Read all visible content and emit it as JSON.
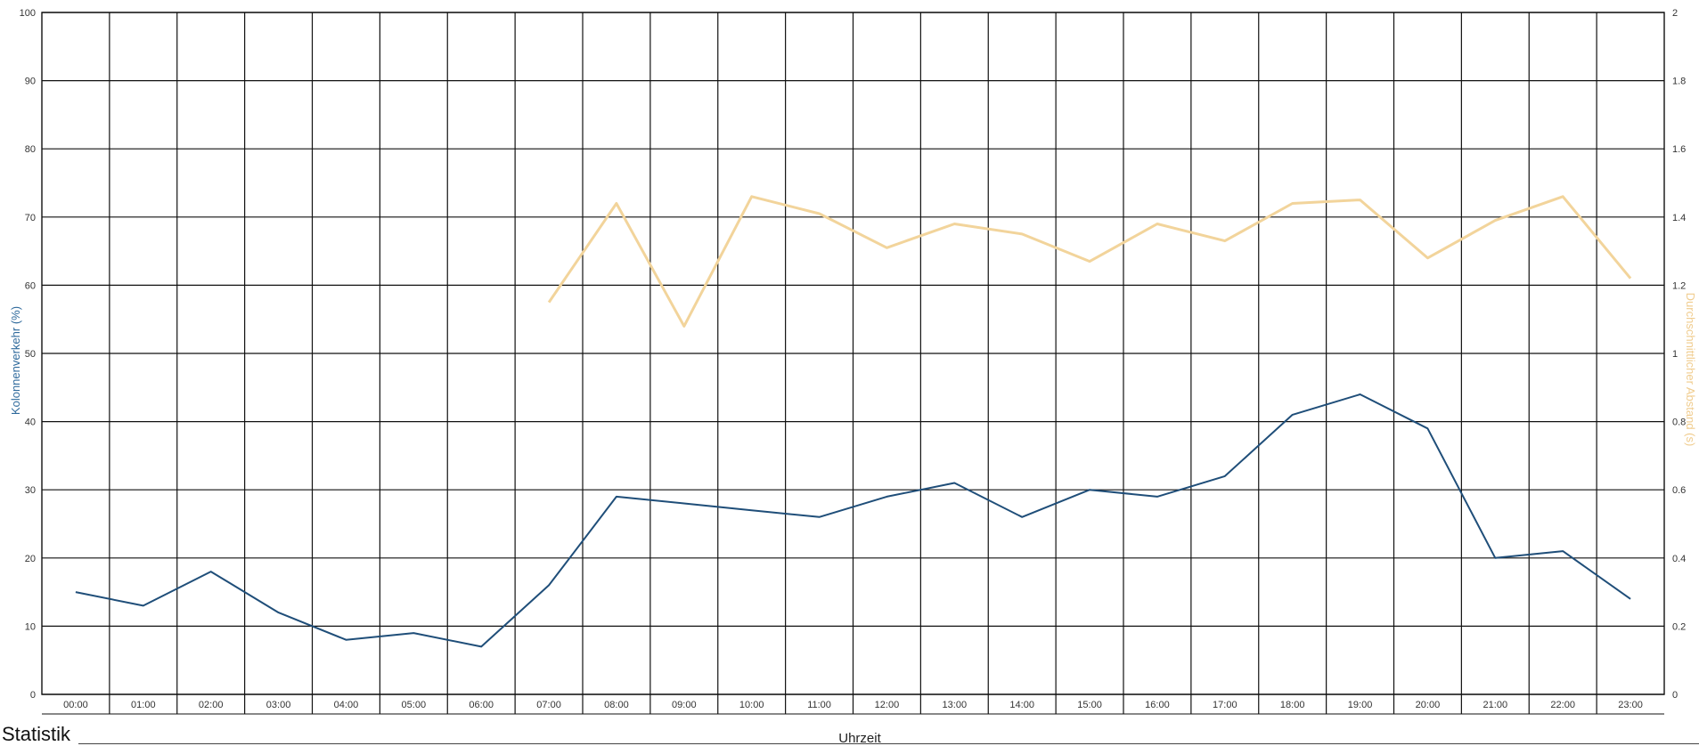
{
  "footer": {
    "label": "Statistik"
  },
  "chart_data": {
    "type": "line",
    "xlabel": "Uhrzeit",
    "ylabel": "Kolonnenverkehr (%)",
    "y2label": "Durchschnittlicher Abstand (s)",
    "ylim": [
      0,
      100
    ],
    "y2lim": [
      0,
      2
    ],
    "yticks": [
      "0",
      "10",
      "20",
      "30",
      "40",
      "50",
      "60",
      "70",
      "80",
      "90",
      "100"
    ],
    "y2ticks": [
      "0",
      "0.2",
      "0.4",
      "0.6",
      "0.8",
      "1",
      "1.2",
      "1.4",
      "1.6",
      "1.8",
      "2"
    ],
    "categories": [
      "00:00",
      "01:00",
      "02:00",
      "03:00",
      "04:00",
      "05:00",
      "06:00",
      "07:00",
      "08:00",
      "09:00",
      "10:00",
      "11:00",
      "12:00",
      "13:00",
      "14:00",
      "15:00",
      "16:00",
      "17:00",
      "18:00",
      "19:00",
      "20:00",
      "21:00",
      "22:00",
      "23:00"
    ],
    "grid": true,
    "series": [
      {
        "name": "Kolonnenverkehr (%)",
        "axis": "left",
        "color": "#1f4e79",
        "values": [
          15,
          13,
          18,
          12,
          8,
          9,
          7,
          16,
          29,
          28,
          27,
          26,
          29,
          31,
          26,
          30,
          29,
          32,
          41,
          44,
          39,
          20,
          21,
          14
        ]
      },
      {
        "name": "Durchschnittlicher Abstand (s)",
        "axis": "right",
        "color": "#f2d49b",
        "values": [
          null,
          null,
          null,
          null,
          null,
          null,
          null,
          1.15,
          1.44,
          1.08,
          1.46,
          1.41,
          1.31,
          1.38,
          1.35,
          1.27,
          1.38,
          1.33,
          1.44,
          1.45,
          1.28,
          1.39,
          1.46,
          1.22
        ]
      }
    ]
  }
}
